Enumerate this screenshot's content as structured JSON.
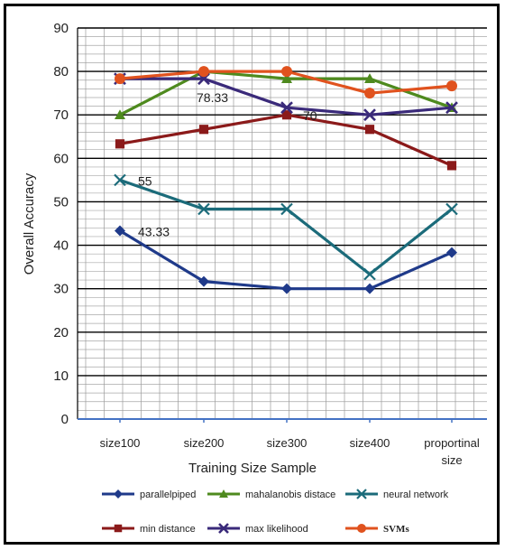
{
  "chart_data": {
    "type": "line",
    "title": "",
    "xlabel": "Training Size Sample",
    "ylabel": "Overall Accuracy",
    "ylim": [
      0,
      90
    ],
    "y_ticks": [
      0,
      10,
      20,
      30,
      40,
      50,
      60,
      70,
      80,
      90
    ],
    "categories": [
      [
        "size100"
      ],
      [
        "size200"
      ],
      [
        "size300"
      ],
      [
        "size400"
      ],
      [
        "proportinal",
        "size"
      ]
    ],
    "grid": true,
    "legend_position": "bottom",
    "series": [
      {
        "name": "parallelpiped",
        "values": [
          43.33,
          31.67,
          30,
          30,
          38.33
        ],
        "color": "#1f3a8a",
        "marker": "diamond"
      },
      {
        "name": "mahalanobis distace",
        "values": [
          70,
          80,
          78.33,
          78.33,
          71.67
        ],
        "color": "#4e8a1e",
        "marker": "triangle"
      },
      {
        "name": "neural network",
        "values": [
          55,
          48.33,
          48.33,
          33.33,
          48.33
        ],
        "color": "#1b6b7a",
        "marker": "x"
      },
      {
        "name": "min distance",
        "values": [
          63.33,
          66.67,
          70,
          66.67,
          58.33
        ],
        "color": "#8b1a1a",
        "marker": "square"
      },
      {
        "name": "max likelihood",
        "values": [
          78.33,
          78.33,
          71.67,
          70,
          71.67
        ],
        "color": "#3a2a7a",
        "marker": "cross"
      },
      {
        "name": "SVMs",
        "values": [
          78.33,
          80,
          80,
          75,
          76.67
        ],
        "color": "#e0521e",
        "marker": "circle"
      }
    ],
    "annotations": [
      {
        "text": "78.33",
        "category_index": 1,
        "value": 78.33
      },
      {
        "text": "70",
        "category_index": 2,
        "value": 70
      },
      {
        "text": "55",
        "category_index": 0,
        "value": 55
      },
      {
        "text": "43.33",
        "category_index": 0,
        "value": 43.33
      }
    ]
  }
}
